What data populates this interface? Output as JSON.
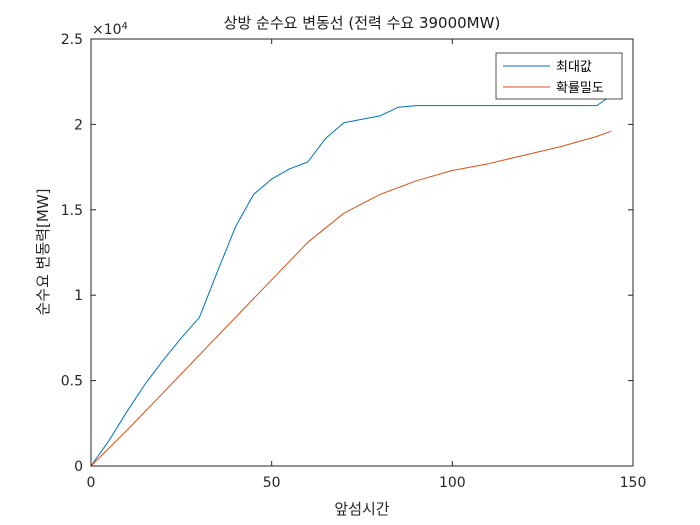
{
  "chart_data": {
    "type": "line",
    "title": "상방 순수요 변동선 (전력 수요 39000MW)",
    "xlabel": "앞섬시간",
    "ylabel": "순수요 변동력[MW]",
    "xlim": [
      0,
      150
    ],
    "ylim": [
      0,
      25000
    ],
    "x_ticks": [
      0,
      50,
      100,
      150
    ],
    "y_ticks": [
      0,
      0.5,
      1,
      1.5,
      2,
      2.5
    ],
    "y_exponent_label": "×10",
    "y_exponent_power": "4",
    "grid": false,
    "legend_position": "top-right",
    "series": [
      {
        "name": "최대값",
        "color": "#0072BD",
        "x": [
          0,
          5,
          10,
          15,
          20,
          25,
          30,
          35,
          40,
          45,
          50,
          55,
          60,
          65,
          70,
          75,
          80,
          85,
          90,
          95,
          100,
          105,
          110,
          115,
          120,
          125,
          130,
          135,
          140,
          144
        ],
        "y": [
          0,
          1500,
          3200,
          4800,
          6200,
          7500,
          8700,
          11400,
          14000,
          15900,
          16800,
          17400,
          17800,
          19200,
          20100,
          20300,
          20500,
          21000,
          21100,
          21100,
          21100,
          21100,
          21100,
          21100,
          21100,
          21100,
          21100,
          21100,
          21100,
          21700
        ]
      },
      {
        "name": "확률밀도",
        "color": "#D95319",
        "x": [
          0,
          10,
          20,
          30,
          40,
          50,
          60,
          70,
          80,
          90,
          100,
          110,
          120,
          130,
          140,
          144
        ],
        "y": [
          0,
          2100,
          4300,
          6500,
          8700,
          10900,
          13100,
          14800,
          15900,
          16700,
          17300,
          17700,
          18200,
          18700,
          19300,
          19600
        ]
      }
    ]
  }
}
